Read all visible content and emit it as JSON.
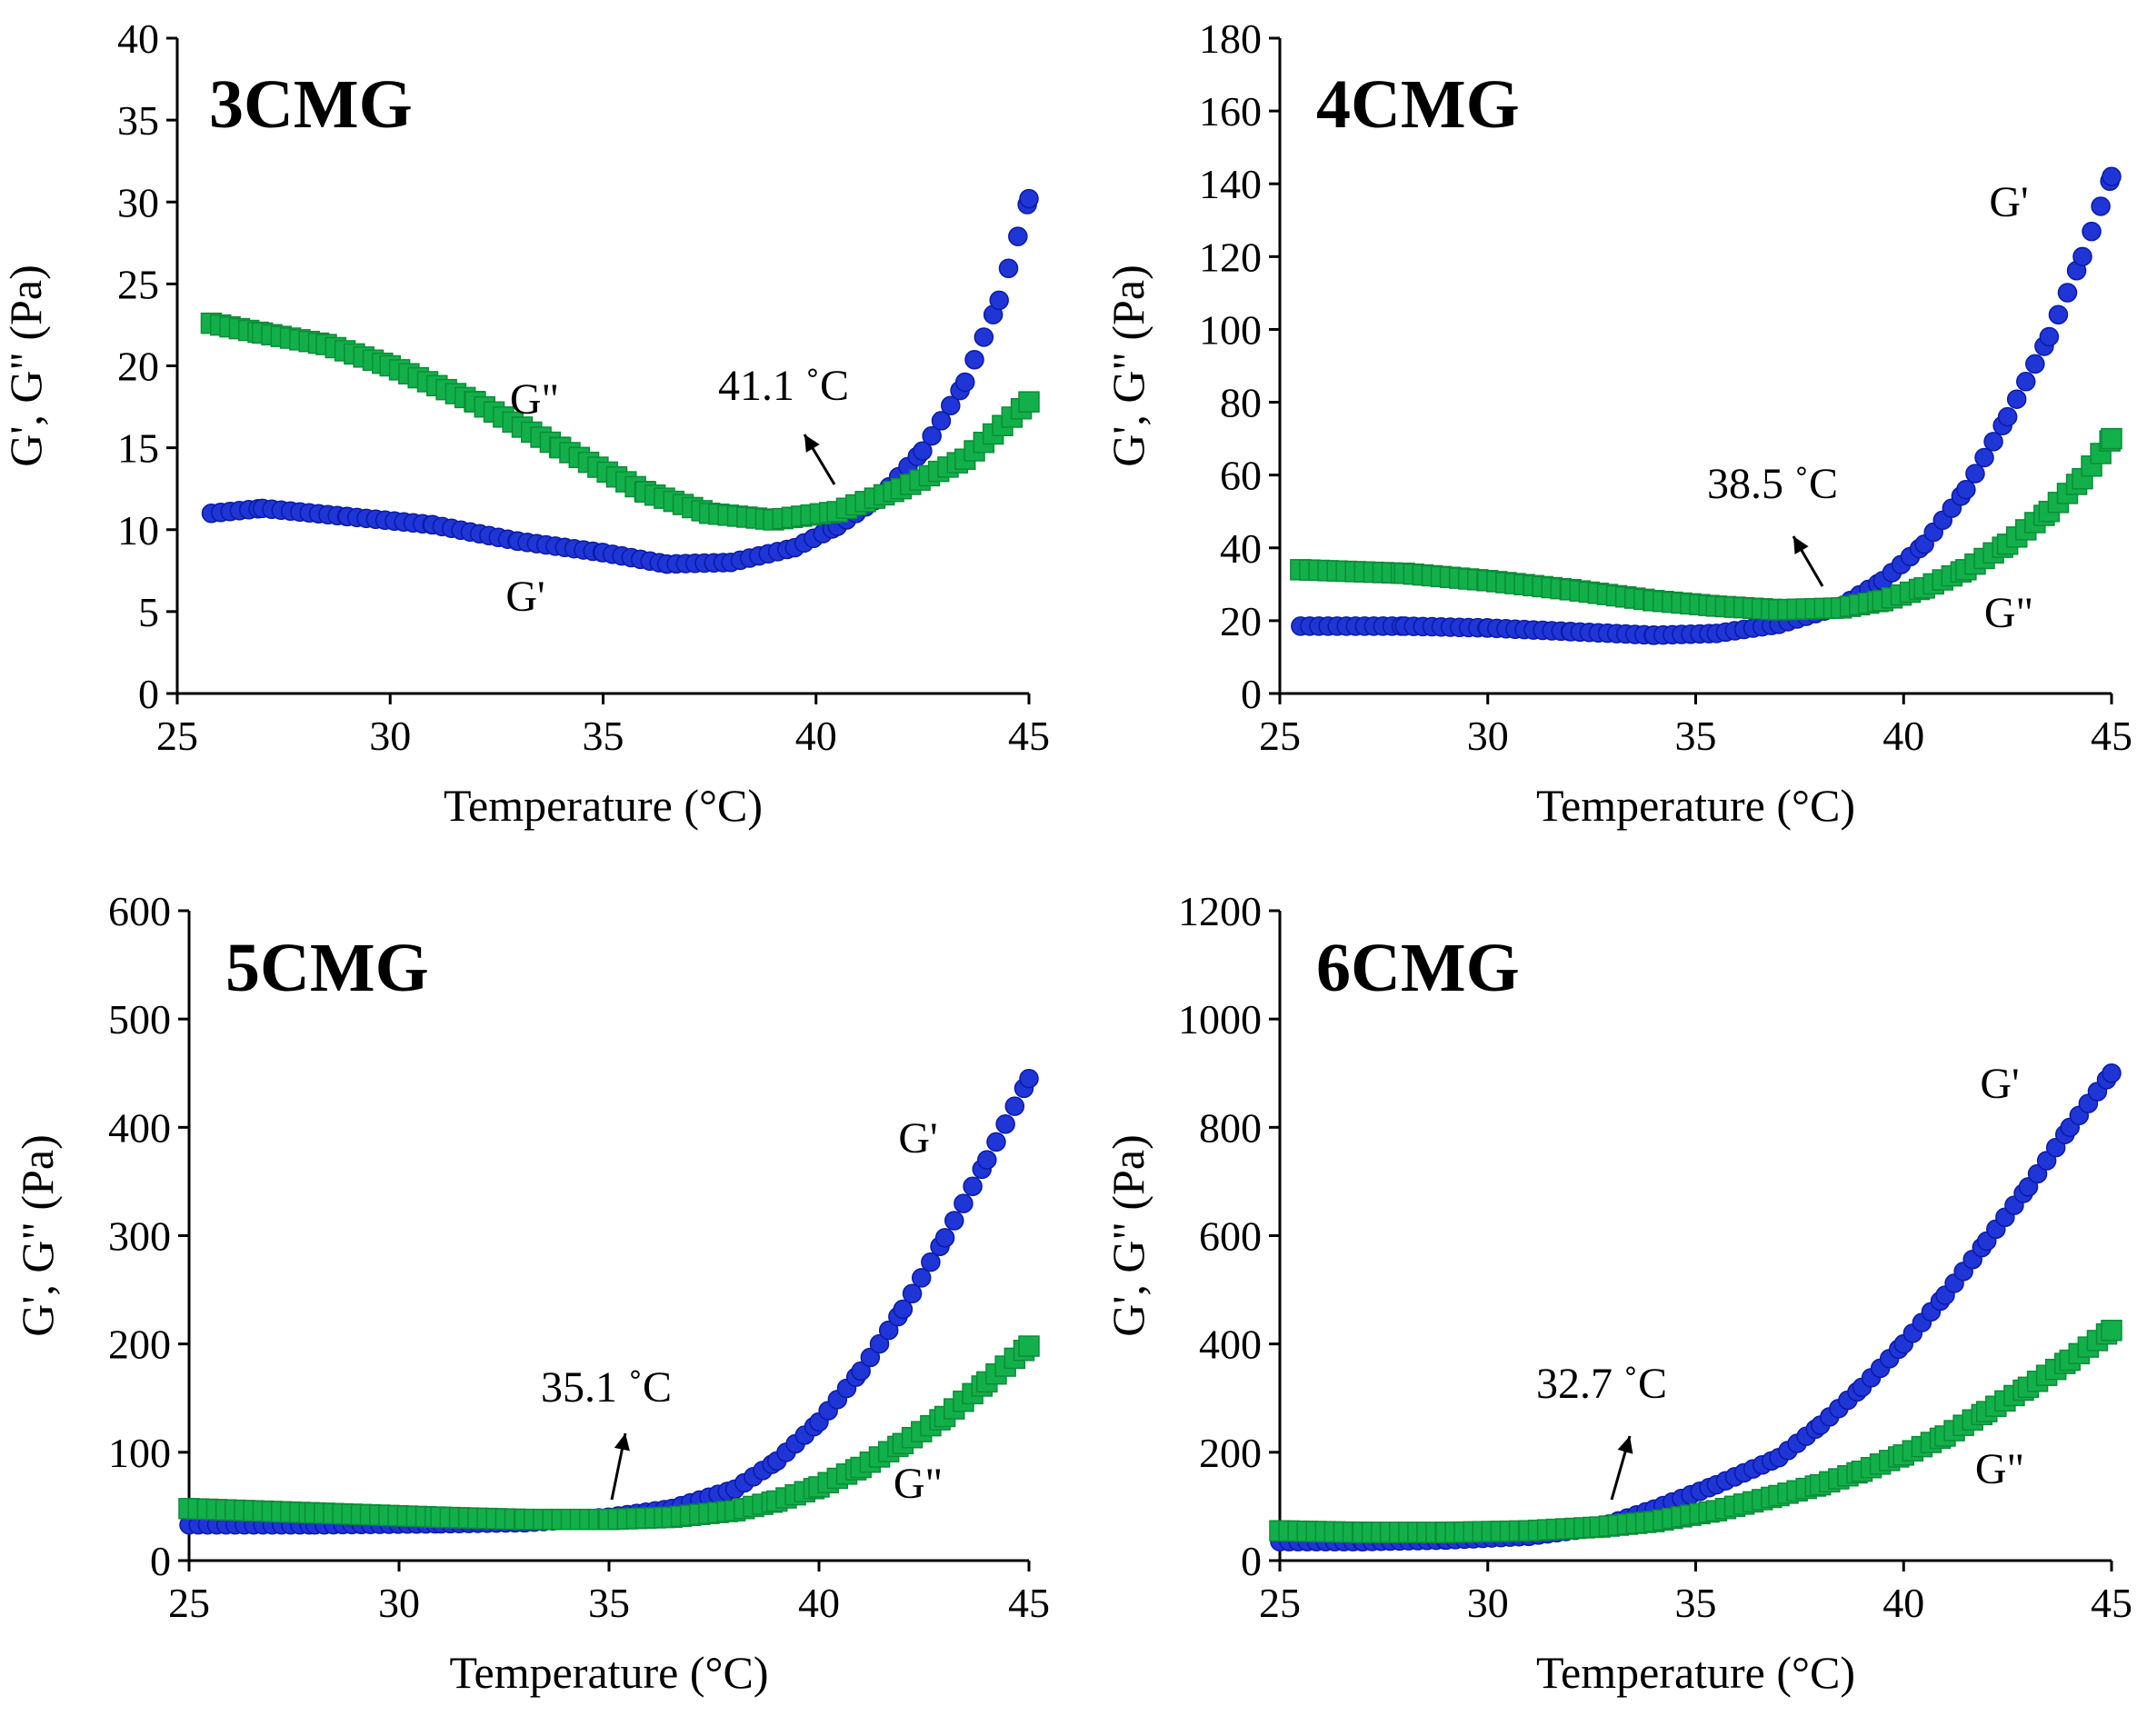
{
  "colors": {
    "g_prime": "#1f35d6",
    "g_prime_edge": "#0a1aa8",
    "g_double_prime": "#12b04a",
    "g_double_prime_edge": "#0c8c38"
  },
  "chart_data": [
    {
      "type": "scatter",
      "title": "3CMG",
      "xlabel": "Temperature (°C)",
      "ylabel": "G', G\" (Pa)",
      "xlim": [
        25,
        45
      ],
      "ylim": [
        0,
        40
      ],
      "xticks": [
        25,
        30,
        35,
        40,
        45
      ],
      "yticks": [
        0,
        5,
        10,
        15,
        20,
        25,
        30,
        35,
        40
      ],
      "annotation": {
        "text": "41.1 ˚C",
        "x": 41.1,
        "y": 11.2
      },
      "series": [
        {
          "name": "G'",
          "marker": "circle",
          "points": [
            [
              25.8,
              11.0
            ],
            [
              27,
              11.3
            ],
            [
              29,
              10.8
            ],
            [
              31,
              10.3
            ],
            [
              33,
              9.3
            ],
            [
              35,
              8.6
            ],
            [
              36.5,
              7.9
            ],
            [
              38,
              8.0
            ],
            [
              39.5,
              8.9
            ],
            [
              40.5,
              10.2
            ],
            [
              41.5,
              12.0
            ],
            [
              42.5,
              14.8
            ],
            [
              43.5,
              19.0
            ],
            [
              44.3,
              24.0
            ],
            [
              45,
              30.2
            ]
          ]
        },
        {
          "name": "G\"",
          "marker": "square",
          "points": [
            [
              25.8,
              22.6
            ],
            [
              27,
              22.0
            ],
            [
              28.5,
              21.3
            ],
            [
              30,
              20.0
            ],
            [
              32,
              17.8
            ],
            [
              34,
              15.0
            ],
            [
              36,
              12.3
            ],
            [
              37.5,
              11.0
            ],
            [
              39,
              10.6
            ],
            [
              40.5,
              11.1
            ],
            [
              42,
              12.5
            ],
            [
              43.5,
              14.3
            ],
            [
              45,
              17.8
            ]
          ]
        }
      ]
    },
    {
      "type": "scatter",
      "title": "4CMG",
      "xlabel": "Temperature (°C)",
      "ylabel": "G', G\" (Pa)",
      "xlim": [
        25,
        45
      ],
      "ylim": [
        0,
        180
      ],
      "xticks": [
        25,
        30,
        35,
        40,
        45
      ],
      "yticks": [
        0,
        20,
        40,
        60,
        80,
        100,
        120,
        140,
        160,
        180
      ],
      "annotation": {
        "text": "38.5 ˚C",
        "x": 38.5,
        "y": 23
      },
      "series": [
        {
          "name": "G'",
          "marker": "circle",
          "points": [
            [
              25.5,
              18.5
            ],
            [
              28,
              18.5
            ],
            [
              30,
              18
            ],
            [
              32,
              17
            ],
            [
              34,
              16
            ],
            [
              35.5,
              16.5
            ],
            [
              37,
              19
            ],
            [
              38.5,
              24
            ],
            [
              39.5,
              31
            ],
            [
              40.5,
              41
            ],
            [
              41.5,
              56
            ],
            [
              42.5,
              76
            ],
            [
              43.5,
              98
            ],
            [
              44.3,
              120
            ],
            [
              45,
              142
            ]
          ]
        },
        {
          "name": "G\"",
          "marker": "square",
          "points": [
            [
              25.5,
              34
            ],
            [
              28,
              33
            ],
            [
              30,
              31
            ],
            [
              32,
              28.5
            ],
            [
              34,
              25.5
            ],
            [
              35.5,
              24
            ],
            [
              37,
              23
            ],
            [
              38.5,
              23.5
            ],
            [
              39.5,
              25.5
            ],
            [
              40.5,
              29
            ],
            [
              41.5,
              34
            ],
            [
              42.5,
              41
            ],
            [
              43.5,
              50
            ],
            [
              44.3,
              59
            ],
            [
              45,
              70
            ]
          ]
        }
      ]
    },
    {
      "type": "scatter",
      "title": "5CMG",
      "xlabel": "Temperature (°C)",
      "ylabel": "G', G\" (Pa)",
      "xlim": [
        25,
        45
      ],
      "ylim": [
        0,
        600
      ],
      "xticks": [
        25,
        30,
        35,
        40,
        45
      ],
      "yticks": [
        0,
        100,
        200,
        300,
        400,
        500,
        600
      ],
      "annotation": {
        "text": "35.1 ˚C",
        "x": 35.1,
        "y": 40
      },
      "series": [
        {
          "name": "G'",
          "marker": "circle",
          "points": [
            [
              25,
              33
            ],
            [
              28,
              33
            ],
            [
              31,
              34
            ],
            [
              33,
              35
            ],
            [
              35,
              40
            ],
            [
              36.5,
              48
            ],
            [
              38,
              66
            ],
            [
              39,
              92
            ],
            [
              40,
              128
            ],
            [
              41,
              175
            ],
            [
              42,
              232
            ],
            [
              43,
              298
            ],
            [
              44,
              370
            ],
            [
              45,
              445
            ]
          ]
        },
        {
          "name": "G\"",
          "marker": "square",
          "points": [
            [
              25,
              48
            ],
            [
              28,
              44
            ],
            [
              31,
              40
            ],
            [
              33,
              38
            ],
            [
              35,
              38
            ],
            [
              36.5,
              40
            ],
            [
              38,
              46
            ],
            [
              39,
              55
            ],
            [
              40,
              68
            ],
            [
              41,
              86
            ],
            [
              42,
              108
            ],
            [
              43,
              133
            ],
            [
              44,
              165
            ],
            [
              45,
              198
            ]
          ]
        }
      ]
    },
    {
      "type": "scatter",
      "title": "6CMG",
      "xlabel": "Temperature (°C)",
      "ylabel": "G', G\" (Pa)",
      "xlim": [
        25,
        45
      ],
      "ylim": [
        0,
        1200
      ],
      "xticks": [
        25,
        30,
        35,
        40,
        45
      ],
      "yticks": [
        0,
        200,
        400,
        600,
        800,
        1000,
        1200
      ],
      "annotation": {
        "text": "32.7 ˚C",
        "x": 32.7,
        "y": 62
      },
      "series": [
        {
          "name": "G'",
          "marker": "circle",
          "points": [
            [
              25,
              35
            ],
            [
              27,
              35
            ],
            [
              29,
              38
            ],
            [
              31,
              45
            ],
            [
              32.7,
              62
            ],
            [
              34,
              95
            ],
            [
              35.5,
              140
            ],
            [
              37,
              190
            ],
            [
              38,
              250
            ],
            [
              39,
              320
            ],
            [
              40,
              400
            ],
            [
              41,
              490
            ],
            [
              42,
              590
            ],
            [
              43,
              690
            ],
            [
              44,
              800
            ],
            [
              45,
              900
            ]
          ]
        },
        {
          "name": "G\"",
          "marker": "square",
          "points": [
            [
              25,
              55
            ],
            [
              27,
              52
            ],
            [
              29,
              52
            ],
            [
              31,
              55
            ],
            [
              32.7,
              62
            ],
            [
              34,
              72
            ],
            [
              35.5,
              92
            ],
            [
              37,
              120
            ],
            [
              38,
              140
            ],
            [
              39,
              165
            ],
            [
              40,
              195
            ],
            [
              41,
              230
            ],
            [
              42,
              275
            ],
            [
              43,
              320
            ],
            [
              44,
              370
            ],
            [
              45,
              425
            ]
          ]
        }
      ]
    }
  ]
}
